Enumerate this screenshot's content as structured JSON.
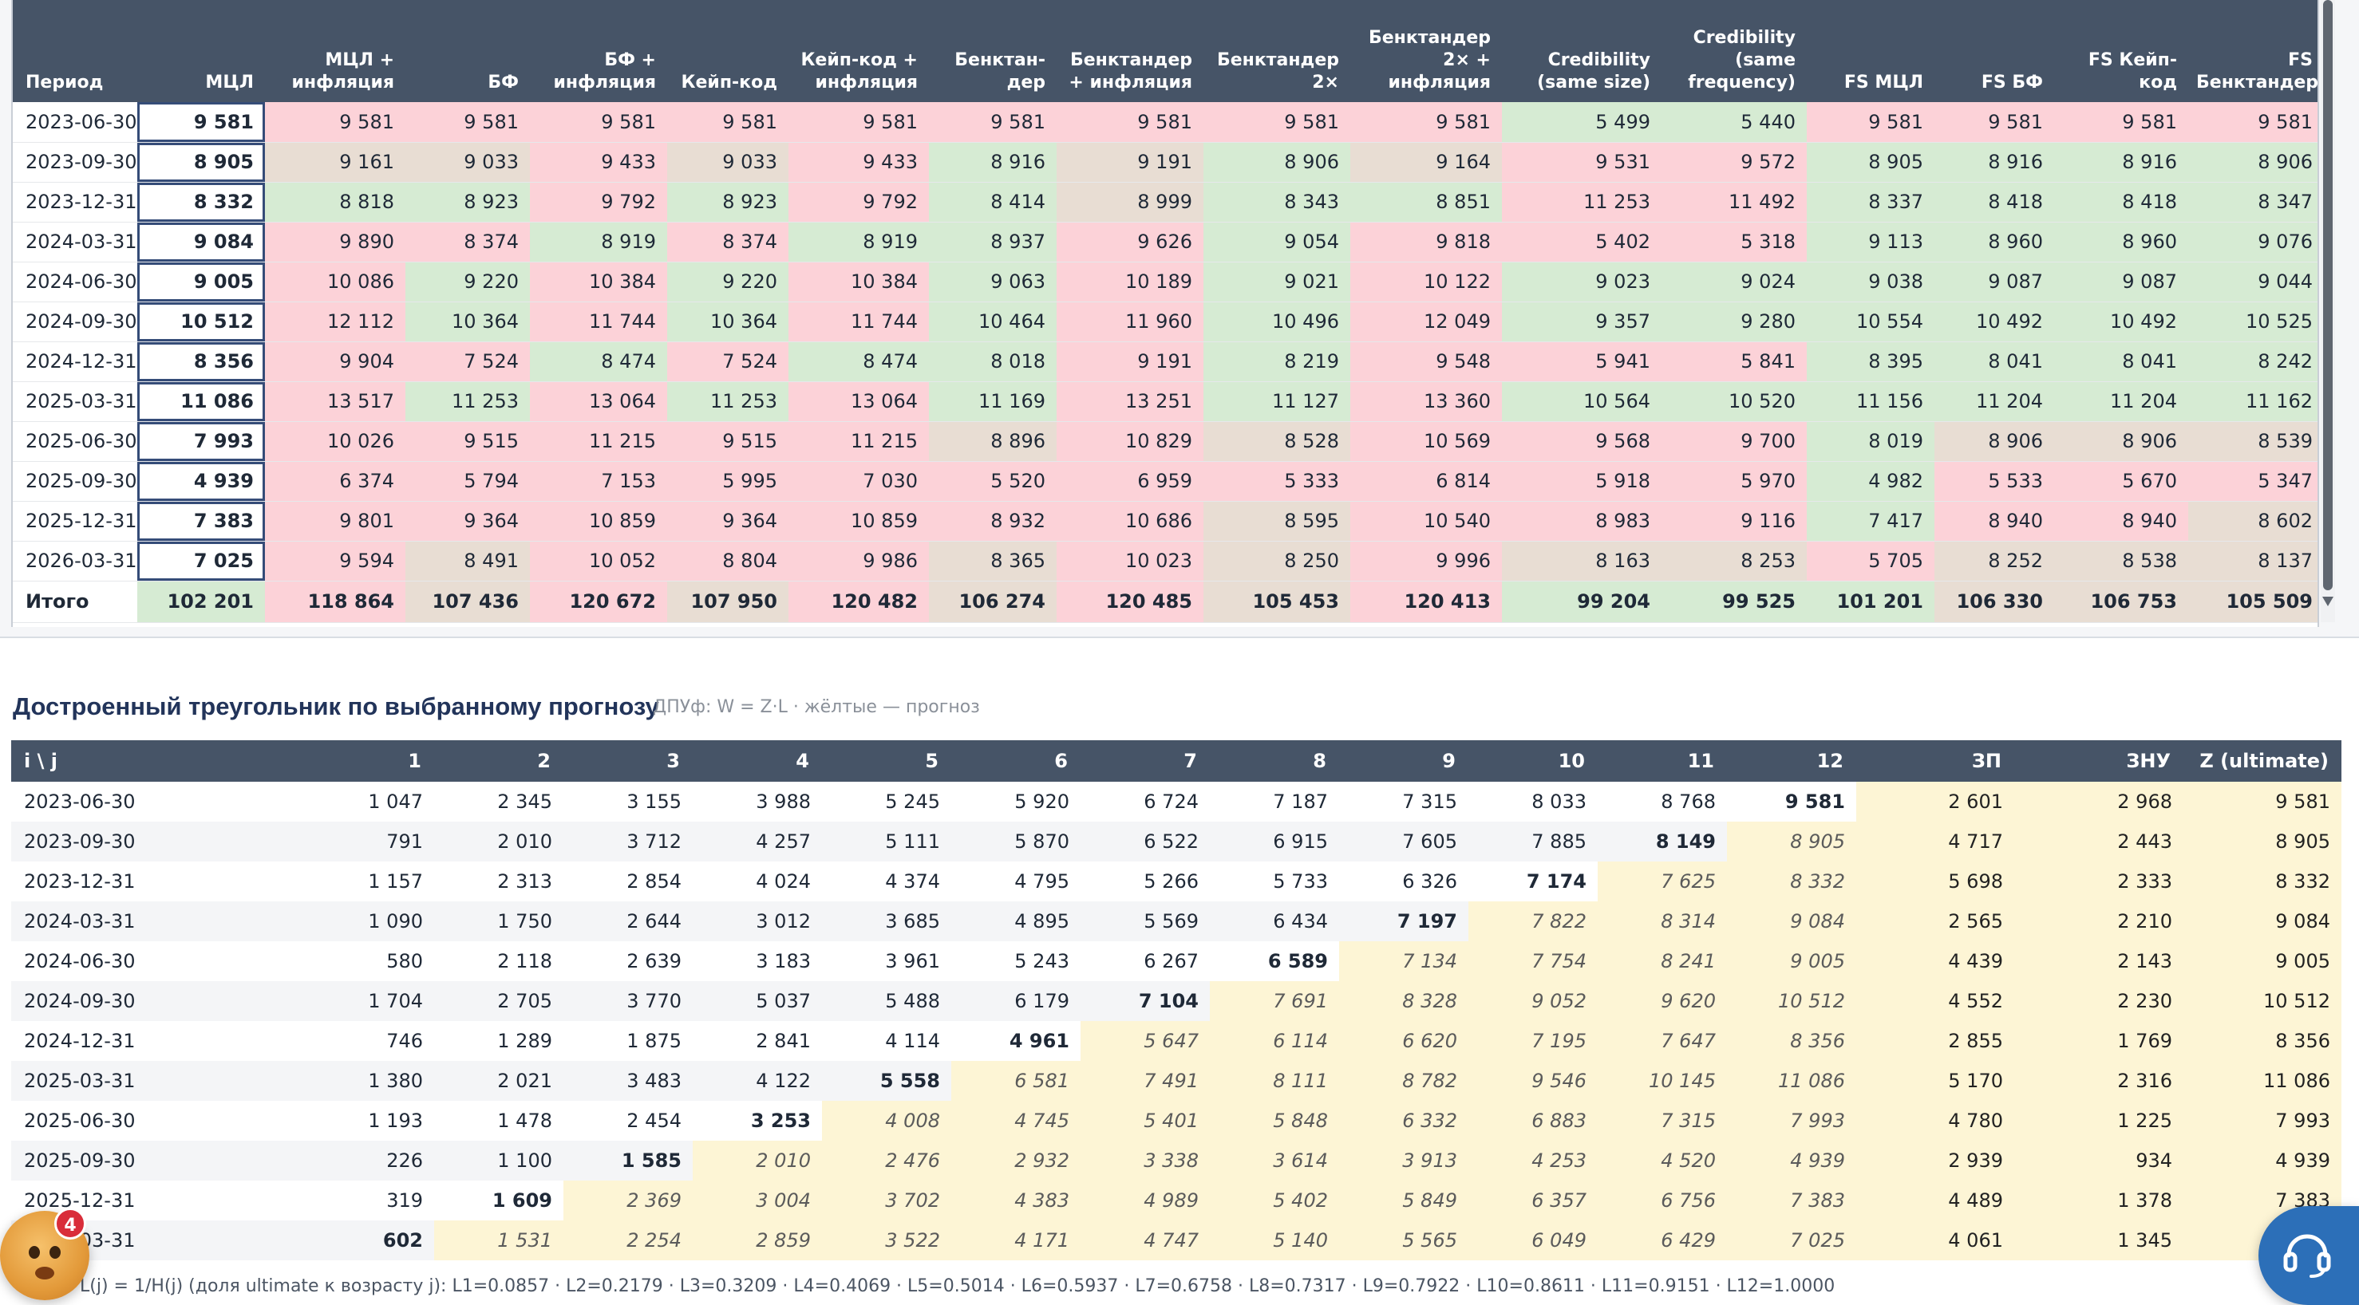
{
  "forecast_table": {
    "headers": [
      "Период",
      "МЦЛ",
      "МЦЛ + инфляция",
      "БФ",
      "БФ + инфляция",
      "Кейп-код",
      "Кейп-код + инфляция",
      "Бенктан- дер",
      "Бенктандер + инфляция",
      "Бенктандер 2×",
      "Бенктандер 2× + инфляция",
      "Credibility (same size)",
      "Credibility (same frequency)",
      "FS МЦЛ",
      "FS БФ",
      "FS Кейп- код",
      "FS Бенктандер"
    ],
    "header_lines": [
      [
        "Период"
      ],
      [
        "МЦЛ"
      ],
      [
        "МЦЛ +",
        "инфляция"
      ],
      [
        "БФ"
      ],
      [
        "БФ +",
        "инфляция"
      ],
      [
        "Кейп-код"
      ],
      [
        "Кейп-код +",
        "инфляция"
      ],
      [
        "Бенктан-",
        "дер"
      ],
      [
        "Бенктандер",
        "+ инфляция"
      ],
      [
        "Бенктандер",
        "2×"
      ],
      [
        "Бенктандер",
        "2× +",
        "инфляция"
      ],
      [
        "Credibility",
        "(same size)"
      ],
      [
        "Credibility",
        "(same",
        "frequency)"
      ],
      [
        "FS МЦЛ"
      ],
      [
        "FS БФ"
      ],
      [
        "FS Кейп-",
        "код"
      ],
      [
        "FS",
        "Бенктандер"
      ]
    ],
    "rows": [
      {
        "period": "2023-06-30",
        "cells": [
          "9 581",
          "9 581",
          "9 581",
          "9 581",
          "9 581",
          "9 581",
          "9 581",
          "9 581",
          "9 581",
          "9 581",
          "5 499",
          "5 440",
          "9 581",
          "9 581",
          "9 581",
          "9 581"
        ],
        "colors": [
          "sel",
          "r",
          "r",
          "r",
          "r",
          "r",
          "r",
          "r",
          "r",
          "r",
          "g",
          "g",
          "r",
          "r",
          "r",
          "r"
        ]
      },
      {
        "period": "2023-09-30",
        "cells": [
          "8 905",
          "9 161",
          "9 033",
          "9 433",
          "9 033",
          "9 433",
          "8 916",
          "9 191",
          "8 906",
          "9 164",
          "9 531",
          "9 572",
          "8 905",
          "8 916",
          "8 916",
          "8 906"
        ],
        "colors": [
          "sel",
          "b",
          "b",
          "r",
          "b",
          "r",
          "g",
          "b",
          "g",
          "b",
          "r",
          "r",
          "g",
          "g",
          "g",
          "g"
        ]
      },
      {
        "period": "2023-12-31",
        "cells": [
          "8 332",
          "8 818",
          "8 923",
          "9 792",
          "8 923",
          "9 792",
          "8 414",
          "8 999",
          "8 343",
          "8 851",
          "11 253",
          "11 492",
          "8 337",
          "8 418",
          "8 418",
          "8 347"
        ],
        "colors": [
          "sel",
          "g",
          "g",
          "r",
          "g",
          "r",
          "g",
          "b",
          "g",
          "g",
          "r",
          "r",
          "g",
          "g",
          "g",
          "g"
        ]
      },
      {
        "period": "2024-03-31",
        "cells": [
          "9 084",
          "9 890",
          "8 374",
          "8 919",
          "8 374",
          "8 919",
          "8 937",
          "9 626",
          "9 054",
          "9 818",
          "5 402",
          "5 318",
          "9 113",
          "8 960",
          "8 960",
          "9 076"
        ],
        "colors": [
          "sel",
          "r",
          "r",
          "g",
          "r",
          "g",
          "g",
          "r",
          "g",
          "r",
          "r",
          "r",
          "g",
          "g",
          "g",
          "g"
        ]
      },
      {
        "period": "2024-06-30",
        "cells": [
          "9 005",
          "10 086",
          "9 220",
          "10 384",
          "9 220",
          "10 384",
          "9 063",
          "10 189",
          "9 021",
          "10 122",
          "9 023",
          "9 024",
          "9 038",
          "9 087",
          "9 087",
          "9 044"
        ],
        "colors": [
          "sel",
          "r",
          "g",
          "r",
          "g",
          "r",
          "g",
          "r",
          "g",
          "r",
          "g",
          "g",
          "g",
          "g",
          "g",
          "g"
        ]
      },
      {
        "period": "2024-09-30",
        "cells": [
          "10 512",
          "12 112",
          "10 364",
          "11 744",
          "10 364",
          "11 744",
          "10 464",
          "11 960",
          "10 496",
          "12 049",
          "9 357",
          "9 280",
          "10 554",
          "10 492",
          "10 492",
          "10 525"
        ],
        "colors": [
          "sel",
          "r",
          "g",
          "r",
          "g",
          "r",
          "g",
          "r",
          "g",
          "r",
          "g",
          "g",
          "g",
          "g",
          "g",
          "g"
        ]
      },
      {
        "period": "2024-12-31",
        "cells": [
          "8 356",
          "9 904",
          "7 524",
          "8 474",
          "7 524",
          "8 474",
          "8 018",
          "9 191",
          "8 219",
          "9 548",
          "5 941",
          "5 841",
          "8 395",
          "8 041",
          "8 041",
          "8 242"
        ],
        "colors": [
          "sel",
          "r",
          "r",
          "g",
          "r",
          "g",
          "g",
          "r",
          "g",
          "r",
          "r",
          "r",
          "g",
          "g",
          "g",
          "g"
        ]
      },
      {
        "period": "2025-03-31",
        "cells": [
          "11 086",
          "13 517",
          "11 253",
          "13 064",
          "11 253",
          "13 064",
          "11 169",
          "13 251",
          "11 127",
          "13 360",
          "10 564",
          "10 520",
          "11 156",
          "11 204",
          "11 204",
          "11 162"
        ],
        "colors": [
          "sel",
          "r",
          "g",
          "r",
          "g",
          "r",
          "g",
          "r",
          "g",
          "r",
          "g",
          "g",
          "g",
          "g",
          "g",
          "g"
        ]
      },
      {
        "period": "2025-06-30",
        "cells": [
          "7 993",
          "10 026",
          "9 515",
          "11 215",
          "9 515",
          "11 215",
          "8 896",
          "10 829",
          "8 528",
          "10 569",
          "9 568",
          "9 700",
          "8 019",
          "8 906",
          "8 906",
          "8 539"
        ],
        "colors": [
          "sel",
          "r",
          "r",
          "r",
          "r",
          "r",
          "b",
          "r",
          "b",
          "r",
          "r",
          "r",
          "g",
          "b",
          "b",
          "b"
        ]
      },
      {
        "period": "2025-09-30",
        "cells": [
          "4 939",
          "6 374",
          "5 794",
          "7 153",
          "5 995",
          "7 030",
          "5 520",
          "6 959",
          "5 333",
          "6 814",
          "5 918",
          "5 970",
          "4 982",
          "5 533",
          "5 670",
          "5 347"
        ],
        "colors": [
          "sel",
          "r",
          "r",
          "r",
          "r",
          "r",
          "r",
          "r",
          "r",
          "r",
          "r",
          "r",
          "g",
          "r",
          "r",
          "r"
        ]
      },
      {
        "period": "2025-12-31",
        "cells": [
          "7 383",
          "9 801",
          "9 364",
          "10 859",
          "9 364",
          "10 859",
          "8 932",
          "10 686",
          "8 595",
          "10 540",
          "8 983",
          "9 116",
          "7 417",
          "8 940",
          "8 940",
          "8 602"
        ],
        "colors": [
          "sel",
          "r",
          "r",
          "r",
          "r",
          "r",
          "r",
          "r",
          "b",
          "r",
          "r",
          "r",
          "g",
          "r",
          "r",
          "b"
        ]
      },
      {
        "period": "2026-03-31",
        "cells": [
          "7 025",
          "9 594",
          "8 491",
          "10 052",
          "8 804",
          "9 986",
          "8 365",
          "10 023",
          "8 250",
          "9 996",
          "8 163",
          "8 253",
          "5 705",
          "8 252",
          "8 538",
          "8 137"
        ],
        "colors": [
          "sel",
          "r",
          "b",
          "r",
          "r",
          "r",
          "b",
          "r",
          "b",
          "r",
          "b",
          "b",
          "r",
          "b",
          "b",
          "b"
        ]
      }
    ],
    "total": {
      "label": "Итого",
      "cells": [
        "102 201",
        "118 864",
        "107 436",
        "120 672",
        "107 950",
        "120 482",
        "106 274",
        "120 485",
        "105 453",
        "120 413",
        "99 204",
        "99 525",
        "101 201",
        "106 330",
        "106 753",
        "105 509"
      ],
      "colors": [
        "g",
        "r",
        "b",
        "r",
        "b",
        "r",
        "b",
        "r",
        "b",
        "r",
        "g",
        "g",
        "g",
        "b",
        "b",
        "b"
      ]
    }
  },
  "triangle_section": {
    "title": "Достроенный треугольник по выбранному прогнозу",
    "note": "ДПУф: W = Z·L · жёлтые — прогноз",
    "headers": [
      "i \\ j",
      "1",
      "2",
      "3",
      "4",
      "5",
      "6",
      "7",
      "8",
      "9",
      "10",
      "11",
      "12",
      "ЗП",
      "ЗНУ",
      "Z (ultimate)"
    ],
    "rows": [
      {
        "period": "2023-06-30",
        "values": [
          "1 047",
          "2 345",
          "3 155",
          "3 988",
          "5 245",
          "5 920",
          "6 724",
          "7 187",
          "7 315",
          "8 033",
          "8 768",
          "9 581"
        ],
        "known": 12,
        "zp": "2 601",
        "znu": "2 968",
        "z": "9 581"
      },
      {
        "period": "2023-09-30",
        "values": [
          "791",
          "2 010",
          "3 712",
          "4 257",
          "5 111",
          "5 870",
          "6 522",
          "6 915",
          "7 605",
          "7 885",
          "8 149",
          "8 905"
        ],
        "known": 11,
        "zp": "4 717",
        "znu": "2 443",
        "z": "8 905"
      },
      {
        "period": "2023-12-31",
        "values": [
          "1 157",
          "2 313",
          "2 854",
          "4 024",
          "4 374",
          "4 795",
          "5 266",
          "5 733",
          "6 326",
          "7 174",
          "7 625",
          "8 332"
        ],
        "known": 10,
        "zp": "5 698",
        "znu": "2 333",
        "z": "8 332"
      },
      {
        "period": "2024-03-31",
        "values": [
          "1 090",
          "1 750",
          "2 644",
          "3 012",
          "3 685",
          "4 895",
          "5 569",
          "6 434",
          "7 197",
          "7 822",
          "8 314",
          "9 084"
        ],
        "known": 9,
        "zp": "2 565",
        "znu": "2 210",
        "z": "9 084"
      },
      {
        "period": "2024-06-30",
        "values": [
          "580",
          "2 118",
          "2 639",
          "3 183",
          "3 961",
          "5 243",
          "6 267",
          "6 589",
          "7 134",
          "7 754",
          "8 241",
          "9 005"
        ],
        "known": 8,
        "zp": "4 439",
        "znu": "2 143",
        "z": "9 005"
      },
      {
        "period": "2024-09-30",
        "values": [
          "1 704",
          "2 705",
          "3 770",
          "5 037",
          "5 488",
          "6 179",
          "7 104",
          "7 691",
          "8 328",
          "9 052",
          "9 620",
          "10 512"
        ],
        "known": 7,
        "zp": "4 552",
        "znu": "2 230",
        "z": "10 512"
      },
      {
        "period": "2024-12-31",
        "values": [
          "746",
          "1 289",
          "1 875",
          "2 841",
          "4 114",
          "4 961",
          "5 647",
          "6 114",
          "6 620",
          "7 195",
          "7 647",
          "8 356"
        ],
        "known": 6,
        "zp": "2 855",
        "znu": "1 769",
        "z": "8 356"
      },
      {
        "period": "2025-03-31",
        "values": [
          "1 380",
          "2 021",
          "3 483",
          "4 122",
          "5 558",
          "6 581",
          "7 491",
          "8 111",
          "8 782",
          "9 546",
          "10 145",
          "11 086"
        ],
        "known": 5,
        "zp": "5 170",
        "znu": "2 316",
        "z": "11 086"
      },
      {
        "period": "2025-06-30",
        "values": [
          "1 193",
          "1 478",
          "2 454",
          "3 253",
          "4 008",
          "4 745",
          "5 401",
          "5 848",
          "6 332",
          "6 883",
          "7 315",
          "7 993"
        ],
        "known": 4,
        "zp": "4 780",
        "znu": "1 225",
        "z": "7 993"
      },
      {
        "period": "2025-09-30",
        "values": [
          "226",
          "1 100",
          "1 585",
          "2 010",
          "2 476",
          "2 932",
          "3 338",
          "3 614",
          "3 913",
          "4 253",
          "4 520",
          "4 939"
        ],
        "known": 3,
        "zp": "2 939",
        "znu": "934",
        "z": "4 939"
      },
      {
        "period": "2025-12-31",
        "values": [
          "319",
          "1 609",
          "2 369",
          "3 004",
          "3 702",
          "4 383",
          "4 989",
          "5 402",
          "5 849",
          "6 357",
          "6 756",
          "7 383"
        ],
        "known": 2,
        "zp": "4 489",
        "znu": "1 378",
        "z": "7 383"
      },
      {
        "period": "2026-03-31",
        "values": [
          "602",
          "1 531",
          "2 254",
          "2 859",
          "3 522",
          "4 171",
          "4 747",
          "5 140",
          "5 565",
          "6 049",
          "6 429",
          "7 025"
        ],
        "known": 1,
        "zp": "4 061",
        "znu": "1 345",
        "z": "7 025"
      }
    ],
    "footnote": "L(j) = 1/H(j) (доля ultimate к возрасту j): L1=0.0857 · L2=0.2179 · L3=0.3209 · L4=0.4069 · L5=0.5014 · L6=0.5937 · L7=0.6758 · L8=0.7317 · L9=0.7922 · L10=0.8611 · L11=0.9151 · L12=1.0000"
  },
  "widgets": {
    "notification_badge": "4",
    "mascot_icon": "face-emoji-icon",
    "help_icon": "support-headset-icon"
  },
  "colors": {
    "header_bg": "#465467",
    "cell_red": "#fcd2d8",
    "cell_green": "#d6ebd3",
    "cell_beige": "#e8ddd3",
    "forecast_yellow": "#fdf5d5",
    "selected_border": "#354c78",
    "title_blue": "#22345a"
  }
}
